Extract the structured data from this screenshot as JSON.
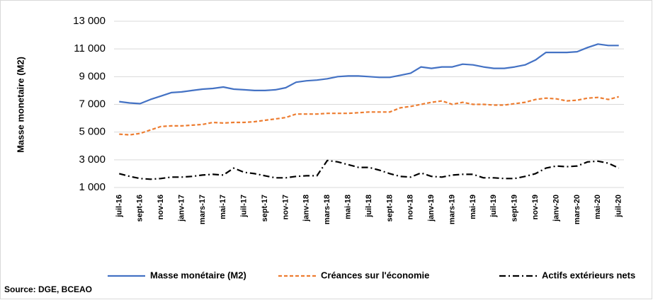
{
  "chart_data": {
    "type": "line",
    "y_label": "Masse monetaire (M2)",
    "source": "Source: DGE, BCEAO",
    "categories": [
      "juil-16",
      null,
      "sept-16",
      null,
      "nov-16",
      null,
      "janv-17",
      null,
      "mars-17",
      null,
      "mai-17",
      null,
      "juil-17",
      null,
      "sept-17",
      null,
      "nov-17",
      null,
      "janv-18",
      null,
      "mars-18",
      null,
      "mai-18",
      null,
      "juil-18",
      null,
      "sept-18",
      null,
      "nov-18",
      null,
      "janv-19",
      null,
      "mars-19",
      null,
      "mai-19",
      null,
      "juil-19",
      null,
      "sept-19",
      null,
      "nov-19",
      null,
      "janv-20",
      null,
      "mars-20",
      null,
      "mai-20",
      null,
      "juil-20"
    ],
    "series": [
      {
        "name": "Masse monétaire (M2)",
        "color": "#4472c4",
        "dash": "solid",
        "values": [
          7200,
          7100,
          7050,
          7350,
          7600,
          7850,
          7900,
          8000,
          8100,
          8150,
          8250,
          8100,
          8050,
          8000,
          8000,
          8050,
          8200,
          8600,
          8700,
          8750,
          8850,
          9000,
          9050,
          9050,
          9000,
          8950,
          8950,
          9100,
          9250,
          9700,
          9600,
          9700,
          9700,
          9900,
          9850,
          9700,
          9600,
          9600,
          9700,
          9850,
          10200,
          10750,
          10750,
          10750,
          10800,
          11100,
          11350,
          11250,
          11250
        ]
      },
      {
        "name": "Créances sur l'économie",
        "color": "#ed7d31",
        "dash": "dashed",
        "values": [
          4850,
          4800,
          4900,
          5150,
          5400,
          5450,
          5450,
          5500,
          5550,
          5700,
          5650,
          5700,
          5700,
          5750,
          5850,
          5950,
          6050,
          6300,
          6300,
          6300,
          6350,
          6350,
          6350,
          6400,
          6450,
          6450,
          6450,
          6750,
          6850,
          7000,
          7150,
          7250,
          7000,
          7150,
          7000,
          7000,
          6950,
          6950,
          7050,
          7150,
          7350,
          7450,
          7400,
          7250,
          7300,
          7450,
          7500,
          7350,
          7550
        ]
      },
      {
        "name": "Actifs extérieurs nets",
        "color": "#000000",
        "dash": "dashdot",
        "values": [
          2000,
          1800,
          1650,
          1600,
          1650,
          1750,
          1750,
          1800,
          1900,
          1950,
          1900,
          2400,
          2100,
          2000,
          1850,
          1700,
          1700,
          1800,
          1850,
          1850,
          2950,
          2850,
          2650,
          2450,
          2450,
          2250,
          2000,
          1800,
          1750,
          2050,
          1800,
          1750,
          1900,
          1950,
          1950,
          1700,
          1700,
          1650,
          1650,
          1800,
          2000,
          2400,
          2550,
          2500,
          2550,
          2850,
          2900,
          2750,
          2400
        ]
      }
    ],
    "ylim": [
      1000,
      13000
    ],
    "yticks": [
      {
        "value": 1000,
        "label": "1 000"
      },
      {
        "value": 3000,
        "label": "3 000"
      },
      {
        "value": 5000,
        "label": "5 000"
      },
      {
        "value": 7000,
        "label": "7 000"
      },
      {
        "value": 9000,
        "label": "9 000"
      },
      {
        "value": 11000,
        "label": "11 000"
      },
      {
        "value": 13000,
        "label": "13 000"
      }
    ],
    "grid": true
  }
}
